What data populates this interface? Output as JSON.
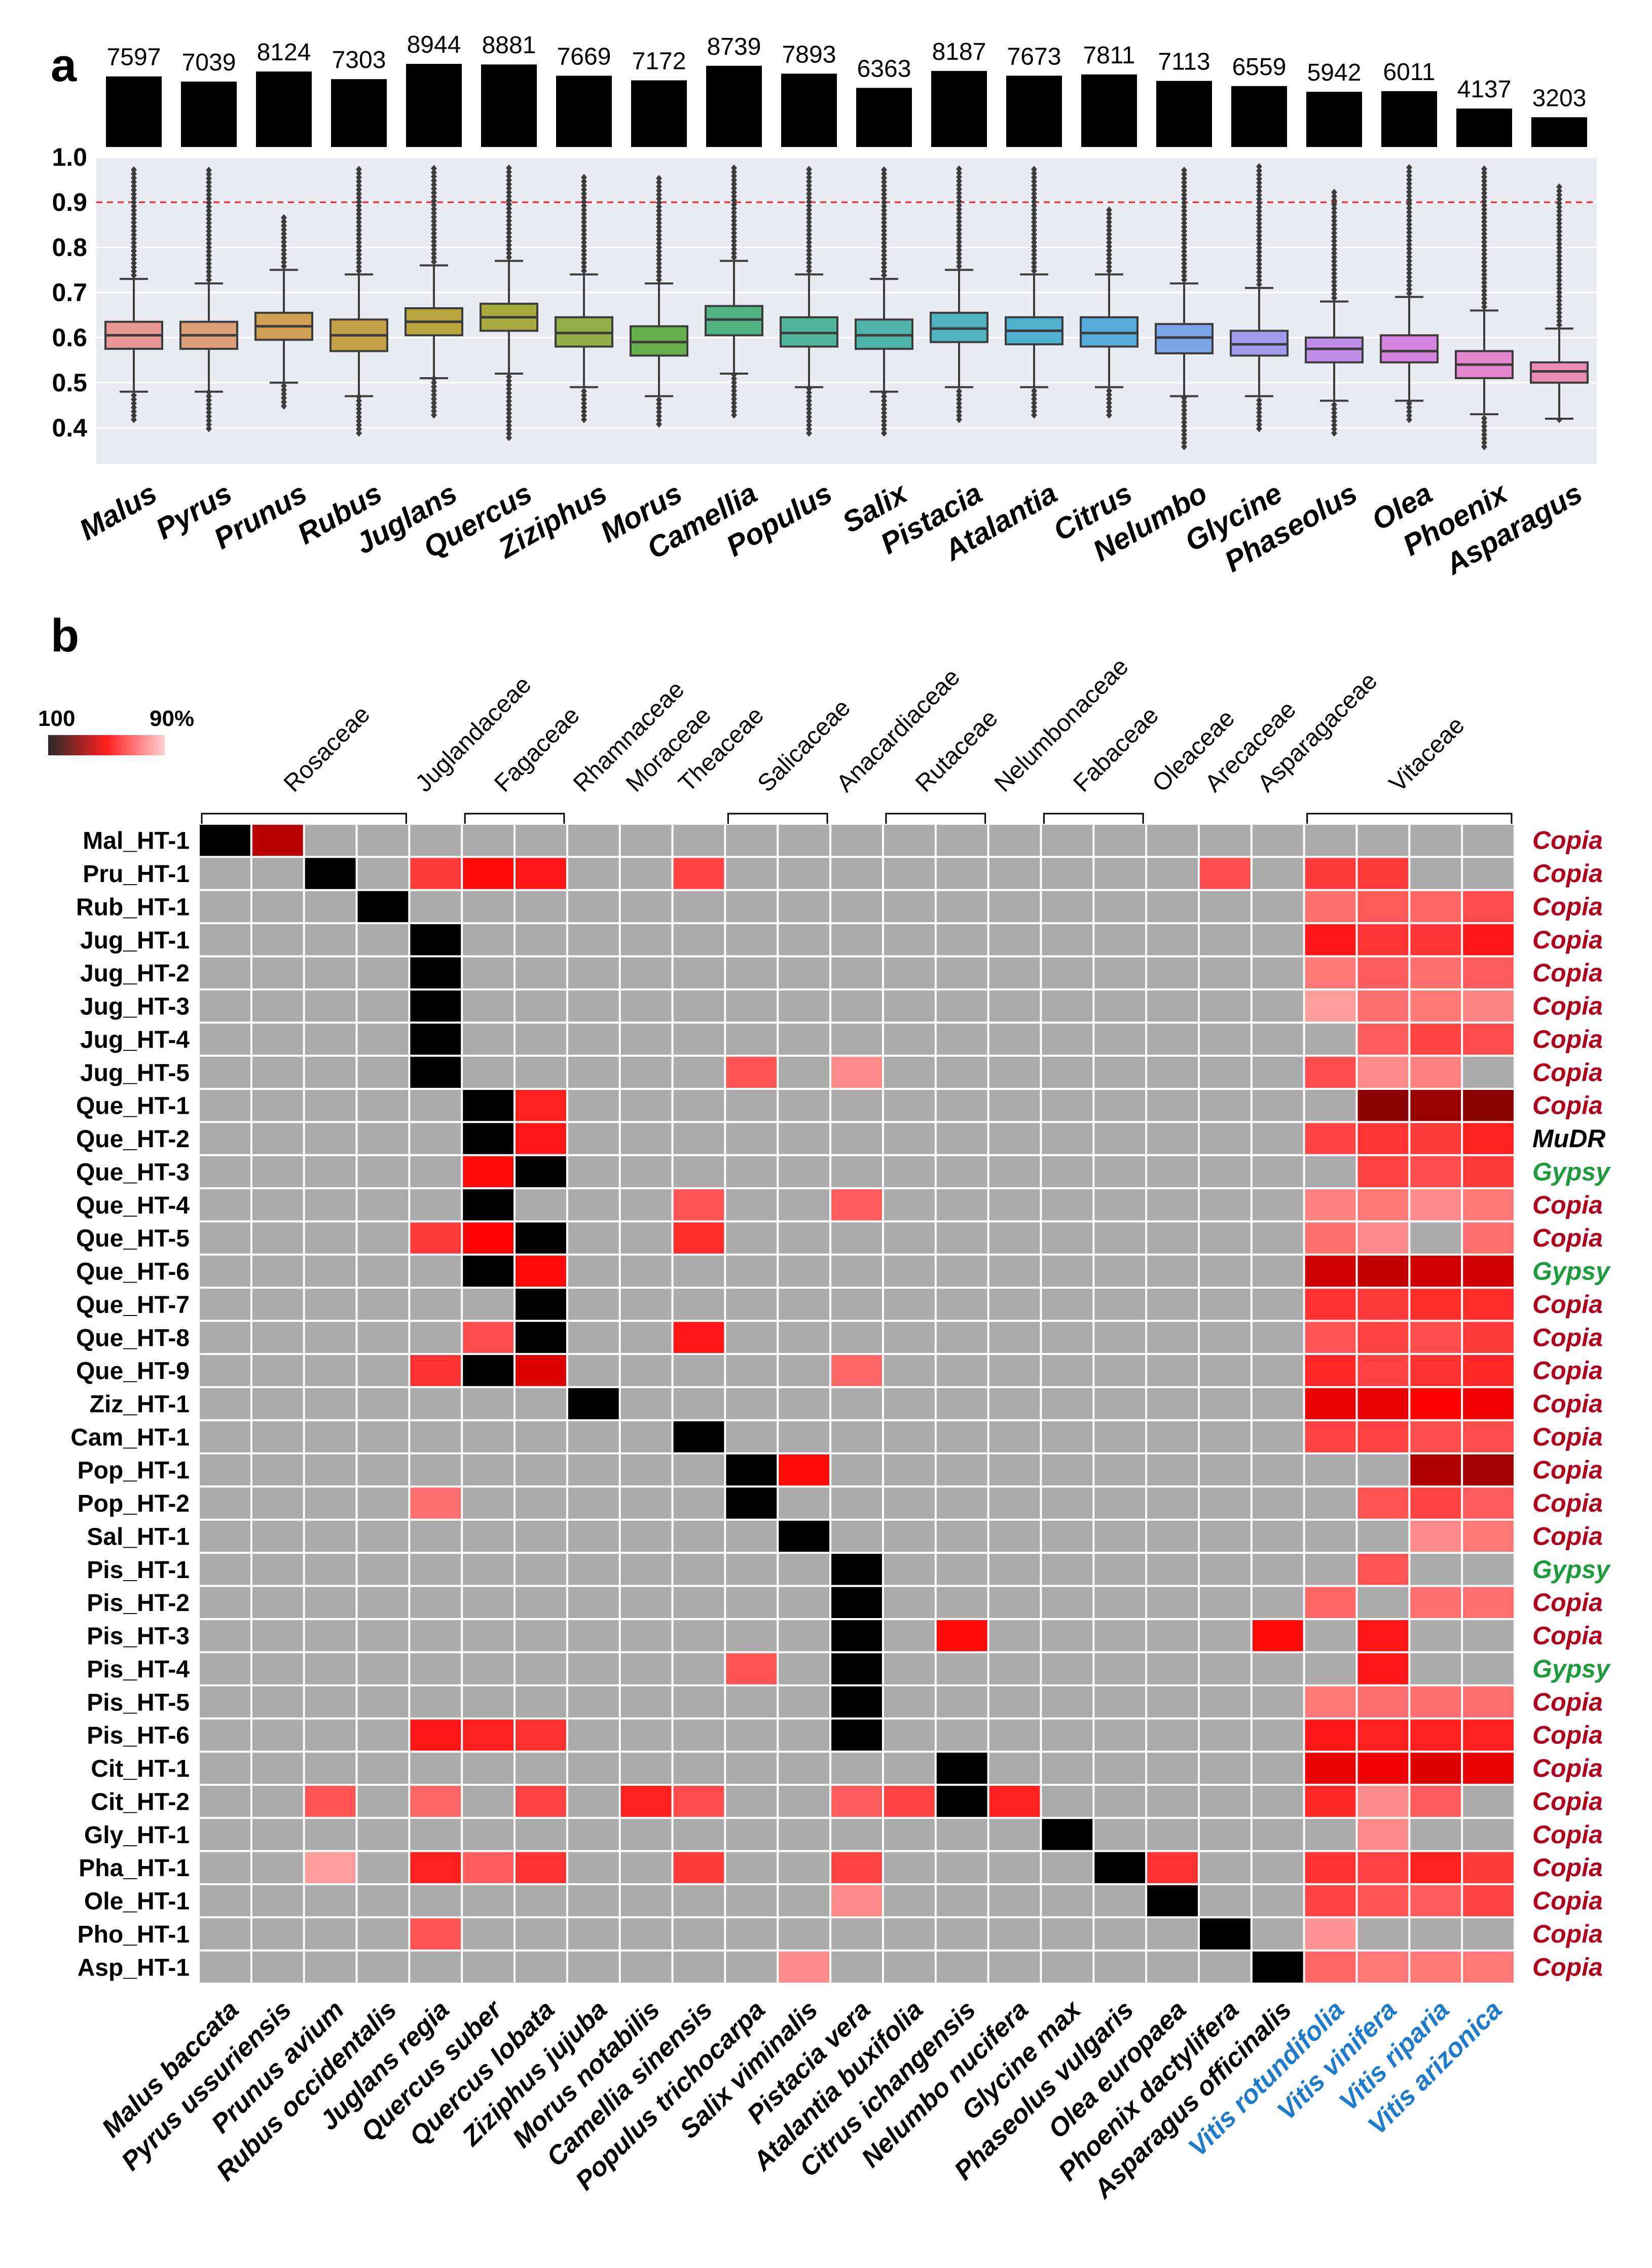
{
  "panel_a_label": "a",
  "panel_b_label": "b",
  "colors": {
    "plot_bg": "#EAEAF2",
    "threshold_line": "#E8202A",
    "cell_empty": "#ABABAB",
    "cell_self": "#000000",
    "te_copia": "#B0001C",
    "te_mudr": "#000000",
    "te_gypsy": "#1E9B3C",
    "vitis_label": "#1E7ACB",
    "box_colors": [
      "#E99795",
      "#DD9D76",
      "#D19F54",
      "#C5A24A",
      "#B9A53D",
      "#A9AA3E",
      "#93AE46",
      "#66B04F",
      "#4FB383",
      "#4FB59C",
      "#4FB5AB",
      "#4EB3BE",
      "#4EB0CC",
      "#56ABDA",
      "#79A4E8",
      "#A39BEF",
      "#C08DE9",
      "#D883DE",
      "#E587CE",
      "#EA8CB6"
    ]
  },
  "chart_data": [
    {
      "type": "bar",
      "title": "",
      "categories": [
        "Malus",
        "Pyrus",
        "Prunus",
        "Rubus",
        "Juglans",
        "Quercus",
        "Ziziphus",
        "Morus",
        "Camellia",
        "Populus",
        "Salix",
        "Pistacia",
        "Atalantia",
        "Citrus",
        "Nelumbo",
        "Glycine",
        "Phaseolus",
        "Olea",
        "Phoenix",
        "Asparagus"
      ],
      "values": [
        7597,
        7039,
        8124,
        7303,
        8944,
        8881,
        7669,
        7172,
        8739,
        7893,
        6363,
        8187,
        7673,
        7811,
        7113,
        6559,
        5942,
        6011,
        4137,
        3203
      ],
      "ylim": [
        0,
        9000
      ]
    },
    {
      "type": "box",
      "categories": [
        "Malus",
        "Pyrus",
        "Prunus",
        "Rubus",
        "Juglans",
        "Quercus",
        "Ziziphus",
        "Morus",
        "Camellia",
        "Populus",
        "Salix",
        "Pistacia",
        "Atalantia",
        "Citrus",
        "Nelumbo",
        "Glycine",
        "Phaseolus",
        "Olea",
        "Phoenix",
        "Asparagus"
      ],
      "ylim": [
        0.32,
        1.0
      ],
      "yticks": [
        "1.0",
        "0.9",
        "0.8",
        "0.7",
        "0.6",
        "0.5",
        "0.4"
      ],
      "threshold": 0.9,
      "series": [
        {
          "name": "Malus",
          "q1": 0.575,
          "median": 0.605,
          "q3": 0.635,
          "whisker_low": 0.48,
          "whisker_high": 0.73,
          "outlier_low": 0.41,
          "outlier_high": 0.98
        },
        {
          "name": "Pyrus",
          "q1": 0.575,
          "median": 0.605,
          "q3": 0.635,
          "whisker_low": 0.48,
          "whisker_high": 0.72,
          "outlier_low": 0.39,
          "outlier_high": 0.98
        },
        {
          "name": "Prunus",
          "q1": 0.595,
          "median": 0.625,
          "q3": 0.655,
          "whisker_low": 0.5,
          "whisker_high": 0.75,
          "outlier_low": 0.44,
          "outlier_high": 0.87
        },
        {
          "name": "Rubus",
          "q1": 0.57,
          "median": 0.605,
          "q3": 0.64,
          "whisker_low": 0.47,
          "whisker_high": 0.74,
          "outlier_low": 0.38,
          "outlier_high": 0.98
        },
        {
          "name": "Juglans",
          "q1": 0.605,
          "median": 0.635,
          "q3": 0.665,
          "whisker_low": 0.51,
          "whisker_high": 0.76,
          "outlier_low": 0.42,
          "outlier_high": 0.98
        },
        {
          "name": "Quercus",
          "q1": 0.615,
          "median": 0.645,
          "q3": 0.675,
          "whisker_low": 0.52,
          "whisker_high": 0.77,
          "outlier_low": 0.37,
          "outlier_high": 0.98
        },
        {
          "name": "Ziziphus",
          "q1": 0.58,
          "median": 0.61,
          "q3": 0.645,
          "whisker_low": 0.49,
          "whisker_high": 0.74,
          "outlier_low": 0.41,
          "outlier_high": 0.96
        },
        {
          "name": "Morus",
          "q1": 0.56,
          "median": 0.59,
          "q3": 0.625,
          "whisker_low": 0.47,
          "whisker_high": 0.72,
          "outlier_low": 0.4,
          "outlier_high": 0.96
        },
        {
          "name": "Camellia",
          "q1": 0.605,
          "median": 0.64,
          "q3": 0.67,
          "whisker_low": 0.52,
          "whisker_high": 0.77,
          "outlier_low": 0.42,
          "outlier_high": 0.98
        },
        {
          "name": "Populus",
          "q1": 0.58,
          "median": 0.61,
          "q3": 0.645,
          "whisker_low": 0.49,
          "whisker_high": 0.74,
          "outlier_low": 0.38,
          "outlier_high": 0.98
        },
        {
          "name": "Salix",
          "q1": 0.575,
          "median": 0.605,
          "q3": 0.64,
          "whisker_low": 0.48,
          "whisker_high": 0.73,
          "outlier_low": 0.38,
          "outlier_high": 0.98
        },
        {
          "name": "Pistacia",
          "q1": 0.59,
          "median": 0.62,
          "q3": 0.655,
          "whisker_low": 0.49,
          "whisker_high": 0.75,
          "outlier_low": 0.41,
          "outlier_high": 0.98
        },
        {
          "name": "Atalantia",
          "q1": 0.585,
          "median": 0.615,
          "q3": 0.645,
          "whisker_low": 0.49,
          "whisker_high": 0.74,
          "outlier_low": 0.42,
          "outlier_high": 0.98
        },
        {
          "name": "Citrus",
          "q1": 0.58,
          "median": 0.61,
          "q3": 0.645,
          "whisker_low": 0.49,
          "whisker_high": 0.74,
          "outlier_low": 0.42,
          "outlier_high": 0.89
        },
        {
          "name": "Nelumbo",
          "q1": 0.565,
          "median": 0.6,
          "q3": 0.63,
          "whisker_low": 0.47,
          "whisker_high": 0.72,
          "outlier_low": 0.35,
          "outlier_high": 0.98
        },
        {
          "name": "Glycine",
          "q1": 0.56,
          "median": 0.585,
          "q3": 0.615,
          "whisker_low": 0.47,
          "whisker_high": 0.71,
          "outlier_low": 0.39,
          "outlier_high": 0.98
        },
        {
          "name": "Phaseolus",
          "q1": 0.545,
          "median": 0.575,
          "q3": 0.6,
          "whisker_low": 0.46,
          "whisker_high": 0.68,
          "outlier_low": 0.38,
          "outlier_high": 0.93
        },
        {
          "name": "Olea",
          "q1": 0.545,
          "median": 0.57,
          "q3": 0.605,
          "whisker_low": 0.46,
          "whisker_high": 0.69,
          "outlier_low": 0.41,
          "outlier_high": 0.98
        },
        {
          "name": "Phoenix",
          "q1": 0.51,
          "median": 0.54,
          "q3": 0.57,
          "whisker_low": 0.43,
          "whisker_high": 0.66,
          "outlier_low": 0.35,
          "outlier_high": 0.98
        },
        {
          "name": "Asparagus",
          "q1": 0.5,
          "median": 0.525,
          "q3": 0.545,
          "whisker_low": 0.42,
          "whisker_high": 0.62,
          "outlier_low": 0.41,
          "outlier_high": 0.94
        }
      ]
    },
    {
      "type": "heatmap",
      "colorbar": {
        "left": "100",
        "right": "90%",
        "range": [
          100,
          90
        ]
      },
      "families": [
        {
          "name": "Rosaceae",
          "span": [
            0,
            3
          ],
          "bracket": true
        },
        {
          "name": "Juglandaceae",
          "span": [
            4,
            4
          ],
          "bracket": false
        },
        {
          "name": "Fagaceae",
          "span": [
            5,
            6
          ],
          "bracket": true
        },
        {
          "name": "Rhamnaceae",
          "span": [
            7,
            7
          ],
          "bracket": false
        },
        {
          "name": "Moraceae",
          "span": [
            8,
            8
          ],
          "bracket": false
        },
        {
          "name": "Theaceae",
          "span": [
            9,
            9
          ],
          "bracket": false
        },
        {
          "name": "Salicaceae",
          "span": [
            10,
            11
          ],
          "bracket": true
        },
        {
          "name": "Anacardiaceae",
          "span": [
            12,
            12
          ],
          "bracket": false
        },
        {
          "name": "Rutaceae",
          "span": [
            13,
            14
          ],
          "bracket": true
        },
        {
          "name": "Nelumbonaceae",
          "span": [
            15,
            15
          ],
          "bracket": false
        },
        {
          "name": "Fabaceae",
          "span": [
            16,
            17
          ],
          "bracket": true
        },
        {
          "name": "Oleaceae",
          "span": [
            18,
            18
          ],
          "bracket": false
        },
        {
          "name": "Arecaceae",
          "span": [
            19,
            19
          ],
          "bracket": false
        },
        {
          "name": "Asparagaceae",
          "span": [
            20,
            20
          ],
          "bracket": false
        },
        {
          "name": "Vitaceae",
          "span": [
            21,
            24
          ],
          "bracket": true
        }
      ],
      "columns": [
        "Malus baccata",
        "Pyrus ussuriensis",
        "Prunus avium",
        "Rubus occidentalis",
        "Juglans regia",
        "Quercus suber",
        "Quercus lobata",
        "Ziziphus jujuba",
        "Morus notabilis",
        "Camellia sinensis",
        "Populus trichocarpa",
        "Salix viminalis",
        "Pistacia vera",
        "Atalantia buxifolia",
        "Citrus ichangensis",
        "Nelumbo nucifera",
        "Glycine max",
        "Phaseolus vulgaris",
        "Olea europaea",
        "Phoenix dactylifera",
        "Asparagus officinalis",
        "Vitis rotundifolia",
        "Vitis vinifera",
        "Vitis riparia",
        "Vitis arizonica"
      ],
      "rows": [
        {
          "name": "Mal_HT-1",
          "te": "Copia",
          "cells": {
            "0": 0,
            "1": 0.4
          }
        },
        {
          "name": "Pru_HT-1",
          "te": "Copia",
          "cells": {
            "2": 0,
            "4": 0.68,
            "5": 0.57,
            "6": 0.6,
            "9": 0.7,
            "19": 0.72,
            "21": 0.68,
            "22": 0.68
          }
        },
        {
          "name": "Rub_HT-1",
          "te": "Copia",
          "cells": {
            "3": 0,
            "21": 0.8,
            "22": 0.75,
            "23": 0.78,
            "24": 0.72
          }
        },
        {
          "name": "Jug_HT-1",
          "te": "Copia",
          "cells": {
            "4": 0,
            "21": 0.6,
            "22": 0.67,
            "23": 0.67,
            "24": 0.6
          }
        },
        {
          "name": "Jug_HT-2",
          "te": "Copia",
          "cells": {
            "4": 0,
            "21": 0.82,
            "22": 0.76,
            "23": 0.8,
            "24": 0.76
          }
        },
        {
          "name": "Jug_HT-3",
          "te": "Copia",
          "cells": {
            "4": 0,
            "21": 0.9,
            "22": 0.8,
            "23": 0.82,
            "24": 0.85
          }
        },
        {
          "name": "Jug_HT-4",
          "te": "Copia",
          "cells": {
            "4": 0,
            "22": 0.76,
            "23": 0.7,
            "24": 0.72
          }
        },
        {
          "name": "Jug_HT-5",
          "te": "Copia",
          "cells": {
            "4": 0,
            "10": 0.74,
            "12": 0.86,
            "21": 0.72,
            "22": 0.86,
            "23": 0.84
          }
        },
        {
          "name": "Que_HT-1",
          "te": "Copia",
          "cells": {
            "5": 0,
            "6": 0.62,
            "22": 0.3,
            "23": 0.33,
            "24": 0.3
          }
        },
        {
          "name": "Que_HT-2",
          "te": "MuDR",
          "cells": {
            "5": 0,
            "6": 0.6,
            "21": 0.7,
            "22": 0.67,
            "23": 0.68,
            "24": 0.62
          }
        },
        {
          "name": "Que_HT-3",
          "te": "Gypsy",
          "cells": {
            "5": 0.57,
            "6": 0,
            "22": 0.7,
            "23": 0.72,
            "24": 0.68
          }
        },
        {
          "name": "Que_HT-4",
          "te": "Copia",
          "cells": {
            "5": 0,
            "9": 0.74,
            "12": 0.76,
            "21": 0.84,
            "22": 0.82,
            "23": 0.86,
            "24": 0.82
          }
        },
        {
          "name": "Que_HT-5",
          "te": "Copia",
          "cells": {
            "4": 0.68,
            "5": 0.56,
            "6": 0,
            "9": 0.65,
            "21": 0.8,
            "22": 0.86,
            "24": 0.8
          }
        },
        {
          "name": "Que_HT-6",
          "te": "Gypsy",
          "cells": {
            "5": 0,
            "6": 0.57,
            "21": 0.45,
            "22": 0.42,
            "23": 0.45,
            "24": 0.45
          }
        },
        {
          "name": "Que_HT-7",
          "te": "Copia",
          "cells": {
            "6": 0,
            "21": 0.66,
            "22": 0.68,
            "23": 0.65,
            "24": 0.65
          }
        },
        {
          "name": "Que_HT-8",
          "te": "Copia",
          "cells": {
            "5": 0.72,
            "6": 0,
            "9": 0.6,
            "21": 0.74,
            "22": 0.7,
            "23": 0.72,
            "24": 0.68
          }
        },
        {
          "name": "Que_HT-9",
          "te": "Copia",
          "cells": {
            "4": 0.66,
            "5": 0,
            "6": 0.48,
            "12": 0.78,
            "21": 0.64,
            "22": 0.7,
            "23": 0.66,
            "24": 0.64
          }
        },
        {
          "name": "Ziz_HT-1",
          "te": "Copia",
          "cells": {
            "7": 0,
            "21": 0.5,
            "22": 0.5,
            "23": 0.55,
            "24": 0.52
          }
        },
        {
          "name": "Cam_HT-1",
          "te": "Copia",
          "cells": {
            "9": 0,
            "21": 0.7,
            "22": 0.7,
            "23": 0.73,
            "24": 0.72
          }
        },
        {
          "name": "Pop_HT-1",
          "te": "Copia",
          "cells": {
            "10": 0,
            "11": 0.57,
            "23": 0.38,
            "24": 0.35
          }
        },
        {
          "name": "Pop_HT-2",
          "te": "Copia",
          "cells": {
            "4": 0.8,
            "10": 0,
            "22": 0.74,
            "23": 0.7,
            "24": 0.76
          }
        },
        {
          "name": "Sal_HT-1",
          "te": "Copia",
          "cells": {
            "11": 0,
            "23": 0.86,
            "24": 0.82
          }
        },
        {
          "name": "Pis_HT-1",
          "te": "Gypsy",
          "cells": {
            "12": 0,
            "22": 0.74
          }
        },
        {
          "name": "Pis_HT-2",
          "te": "Copia",
          "cells": {
            "12": 0,
            "21": 0.78,
            "23": 0.8,
            "24": 0.8
          }
        },
        {
          "name": "Pis_HT-3",
          "te": "Copia",
          "cells": {
            "12": 0,
            "14": 0.57,
            "20": 0.57,
            "22": 0.6
          }
        },
        {
          "name": "Pis_HT-4",
          "te": "Gypsy",
          "cells": {
            "10": 0.74,
            "12": 0,
            "22": 0.6
          }
        },
        {
          "name": "Pis_HT-5",
          "te": "Copia",
          "cells": {
            "12": 0,
            "21": 0.82,
            "22": 0.8,
            "23": 0.8,
            "24": 0.8
          }
        },
        {
          "name": "Pis_HT-6",
          "te": "Copia",
          "cells": {
            "4": 0.6,
            "5": 0.62,
            "6": 0.66,
            "12": 0,
            "21": 0.6,
            "22": 0.62,
            "23": 0.62,
            "24": 0.62
          }
        },
        {
          "name": "Cit_HT-1",
          "te": "Copia",
          "cells": {
            "14": 0,
            "21": 0.5,
            "22": 0.52,
            "23": 0.48,
            "24": 0.5
          }
        },
        {
          "name": "Cit_HT-2",
          "te": "Copia",
          "cells": {
            "2": 0.74,
            "4": 0.78,
            "6": 0.7,
            "8": 0.62,
            "9": 0.72,
            "12": 0.76,
            "13": 0.7,
            "14": 0,
            "15": 0.62,
            "21": 0.64,
            "22": 0.86,
            "23": 0.76
          }
        },
        {
          "name": "Gly_HT-1",
          "te": "Copia",
          "cells": {
            "16": 0,
            "22": 0.86
          }
        },
        {
          "name": "Pha_HT-1",
          "te": "Copia",
          "cells": {
            "2": 0.9,
            "4": 0.62,
            "5": 0.76,
            "6": 0.66,
            "9": 0.68,
            "12": 0.7,
            "17": 0,
            "18": 0.66,
            "21": 0.66,
            "22": 0.7,
            "23": 0.62,
            "24": 0.68
          }
        },
        {
          "name": "Ole_HT-1",
          "te": "Copia",
          "cells": {
            "12": 0.86,
            "18": 0,
            "21": 0.7,
            "22": 0.74,
            "23": 0.76,
            "24": 0.7
          }
        },
        {
          "name": "Pho_HT-1",
          "te": "Copia",
          "cells": {
            "4": 0.74,
            "19": 0,
            "21": 0.88
          }
        },
        {
          "name": "Asp_HT-1",
          "te": "Copia",
          "cells": {
            "11": 0.86,
            "20": 0,
            "21": 0.78,
            "22": 0.82,
            "23": 0.82,
            "24": 0.82
          }
        }
      ]
    }
  ]
}
